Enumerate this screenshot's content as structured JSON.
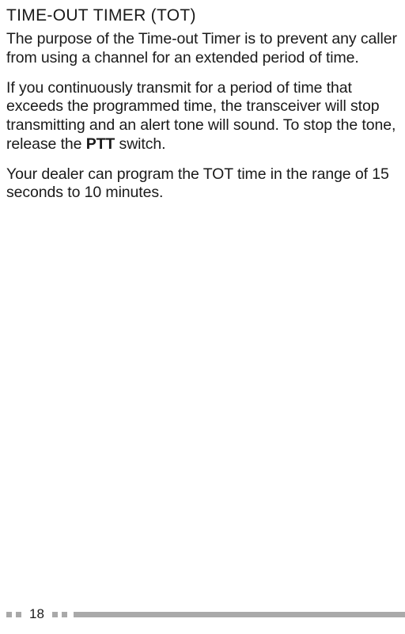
{
  "heading": {
    "pre": "T",
    "smallcaps1": "IME",
    "dash": "-",
    "smallcaps2": "OUT",
    "space": " ",
    "pre2": "T",
    "smallcaps3": "IMER",
    "rest": " (TOT)"
  },
  "para1": "The purpose of the Time-out Timer is to prevent any caller from using a channel for an extended period of time.",
  "para2_a": "If you continuously transmit for a period of time that exceeds the programmed time, the transceiver will stop transmitting and an alert tone will sound.  To stop the tone, release the ",
  "para2_bold": "PTT",
  "para2_b": " switch.",
  "para3": "Your dealer can program the TOT time in the range of 15 seconds to 10 minutes.",
  "page_number": "18"
}
